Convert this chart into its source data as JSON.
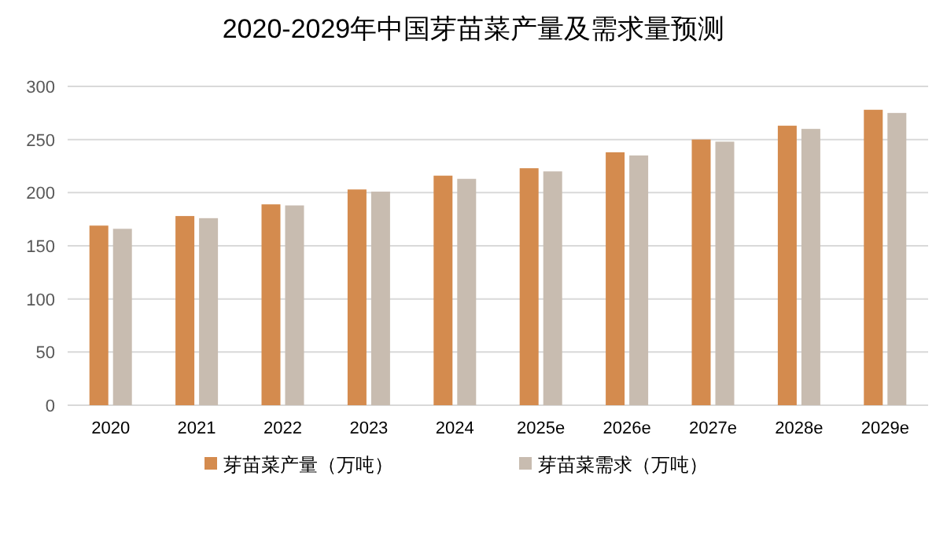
{
  "chart_data": {
    "type": "bar",
    "title": "2020-2029年中国芽苗菜产量及需求量预测",
    "categories": [
      "2020",
      "2021",
      "2022",
      "2023",
      "2024",
      "2025e",
      "2026e",
      "2027e",
      "2028e",
      "2029e"
    ],
    "series": [
      {
        "name": "芽苗菜产量（万吨）",
        "color": "#d48b4e",
        "values": [
          169,
          178,
          189,
          203,
          216,
          223,
          238,
          250,
          263,
          278
        ]
      },
      {
        "name": "芽苗菜需求（万吨）",
        "color": "#c8bcb0",
        "values": [
          166,
          176,
          188,
          201,
          213,
          220,
          235,
          248,
          260,
          275
        ]
      }
    ],
    "ylim": [
      0,
      300
    ],
    "yticks": [
      0,
      50,
      100,
      150,
      200,
      250,
      300
    ],
    "grid": "y",
    "legend": "bottom"
  }
}
